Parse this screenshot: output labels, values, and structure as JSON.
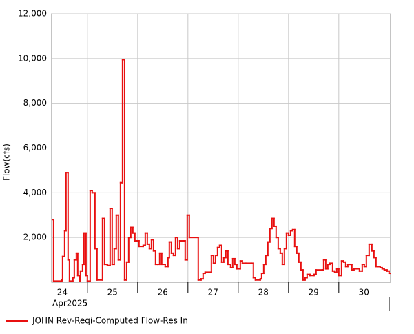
{
  "chart_data": {
    "type": "line",
    "step": true,
    "ylabel": "Flow(cfs)",
    "x_sublabel": "Apr2025",
    "xlim": [
      24.29,
      31.03
    ],
    "ylim": [
      0,
      12000
    ],
    "grid": true,
    "xticks": [
      {
        "value": 24,
        "label": "24"
      },
      {
        "value": 25,
        "label": "25"
      },
      {
        "value": 26,
        "label": "26"
      },
      {
        "value": 27,
        "label": "27"
      },
      {
        "value": 28,
        "label": "28"
      },
      {
        "value": 29,
        "label": "29"
      },
      {
        "value": 30,
        "label": "30"
      }
    ],
    "yticks": [
      {
        "value": 2000,
        "label": "2,000"
      },
      {
        "value": 4000,
        "label": "4,000"
      },
      {
        "value": 6000,
        "label": "6,000"
      },
      {
        "value": 8000,
        "label": "8,000"
      },
      {
        "value": 10000,
        "label": "10,000"
      },
      {
        "value": 12000,
        "label": "12,000"
      }
    ],
    "x": [
      24.288,
      24.329,
      24.493,
      24.507,
      24.548,
      24.575,
      24.616,
      24.644,
      24.712,
      24.74,
      24.781,
      24.808,
      24.849,
      24.863,
      24.904,
      24.932,
      24.973,
      25.0,
      25.055,
      25.096,
      25.151,
      25.192,
      25.301,
      25.342,
      25.397,
      25.452,
      25.493,
      25.534,
      25.575,
      25.616,
      25.658,
      25.699,
      25.74,
      25.781,
      25.822,
      25.863,
      25.904,
      25.945,
      25.986,
      26.027,
      26.11,
      26.151,
      26.192,
      26.233,
      26.274,
      26.315,
      26.356,
      26.397,
      26.438,
      26.479,
      26.548,
      26.603,
      26.63,
      26.671,
      26.712,
      26.753,
      26.795,
      26.836,
      26.918,
      26.945,
      26.986,
      27.027,
      27.205,
      27.26,
      27.301,
      27.342,
      27.466,
      27.507,
      27.548,
      27.589,
      27.63,
      27.671,
      27.712,
      27.753,
      27.795,
      27.849,
      27.89,
      27.932,
      27.973,
      28.041,
      28.082,
      28.151,
      28.26,
      28.301,
      28.342,
      28.438,
      28.466,
      28.507,
      28.548,
      28.589,
      28.63,
      28.671,
      28.712,
      28.753,
      28.795,
      28.836,
      28.877,
      28.918,
      28.959,
      29.0,
      29.041,
      29.082,
      29.123,
      29.164,
      29.205,
      29.247,
      29.288,
      29.329,
      29.37,
      29.425,
      29.507,
      29.548,
      29.671,
      29.699,
      29.74,
      29.781,
      29.822,
      29.877,
      29.918,
      29.959,
      30.0,
      30.055,
      30.096,
      30.137,
      30.178,
      30.219,
      30.26,
      30.301,
      30.411,
      30.466,
      30.507,
      30.548,
      30.603,
      30.658,
      30.699,
      30.74,
      30.781,
      30.822,
      30.863,
      30.904,
      30.959,
      31.0,
      31.027
    ],
    "series": [
      {
        "name": "JOHN Rev-Reqi-Computed Flow-Res In",
        "color": "#e81010",
        "values": [
          2800,
          50,
          100,
          1150,
          2300,
          4900,
          1000,
          50,
          200,
          1000,
          1300,
          300,
          50,
          500,
          800,
          2200,
          300,
          50,
          4100,
          4000,
          1500,
          100,
          2850,
          800,
          750,
          3300,
          800,
          1500,
          3000,
          1000,
          4450,
          9950,
          100,
          900,
          2000,
          2450,
          2200,
          1850,
          1850,
          1600,
          1650,
          2200,
          1700,
          1500,
          1900,
          1400,
          800,
          800,
          1300,
          800,
          700,
          1100,
          1800,
          1300,
          1200,
          2000,
          1500,
          1850,
          1850,
          1000,
          3000,
          2000,
          100,
          150,
          400,
          450,
          1200,
          850,
          1200,
          1550,
          1650,
          900,
          1100,
          1400,
          800,
          650,
          1050,
          800,
          600,
          950,
          850,
          850,
          850,
          200,
          100,
          150,
          400,
          800,
          1200,
          1800,
          2400,
          2850,
          2500,
          2000,
          1500,
          1300,
          800,
          1500,
          2200,
          2100,
          2300,
          2350,
          1600,
          1300,
          900,
          550,
          100,
          200,
          350,
          300,
          350,
          550,
          550,
          1000,
          600,
          800,
          850,
          500,
          450,
          600,
          300,
          950,
          900,
          700,
          800,
          800,
          550,
          600,
          500,
          800,
          700,
          1200,
          1700,
          1400,
          1100,
          700,
          700,
          650,
          600,
          550,
          500,
          400,
          400
        ]
      }
    ]
  }
}
